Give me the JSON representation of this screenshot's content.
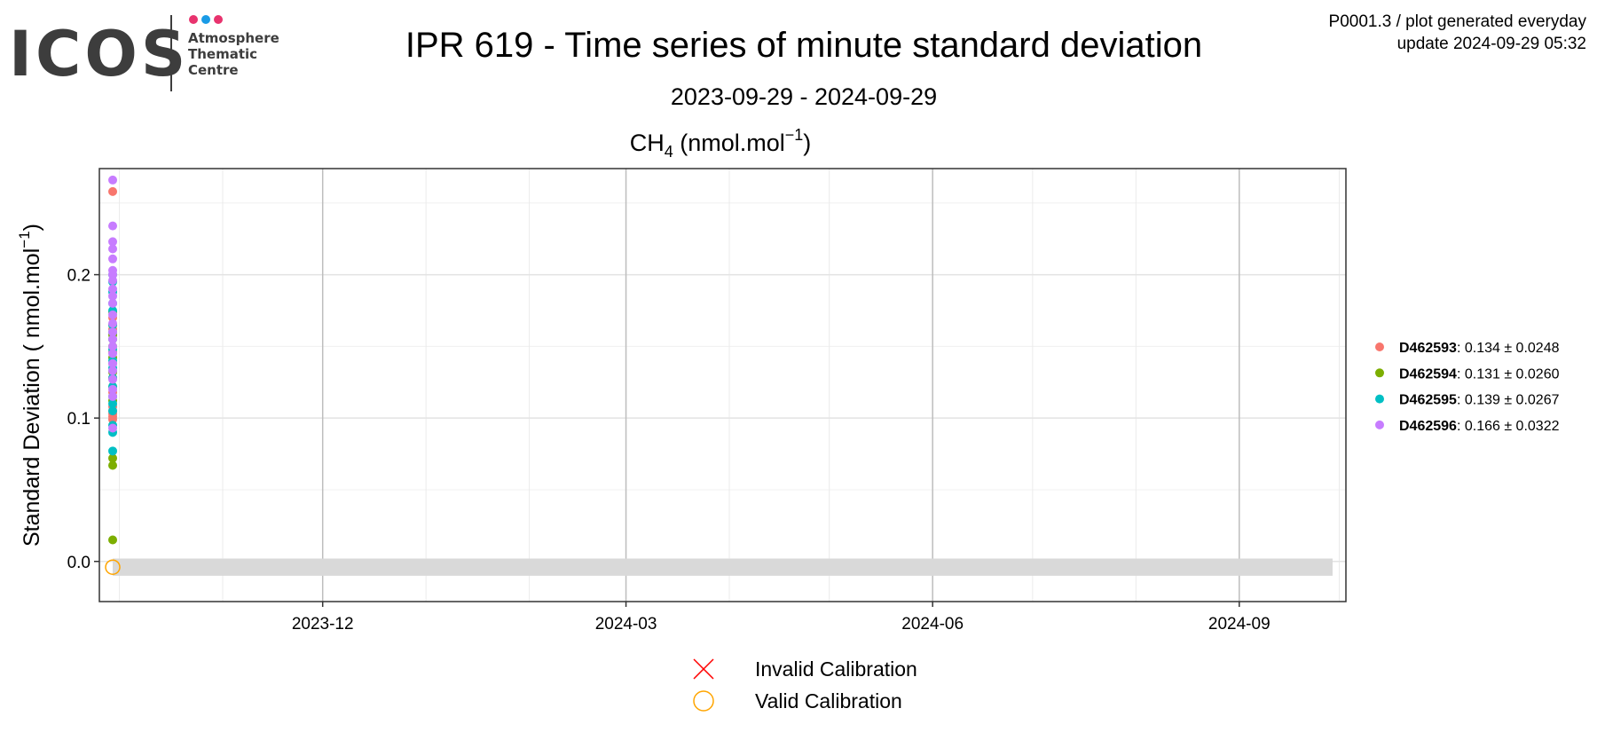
{
  "header": {
    "logo_text": "ICOS",
    "logo_sub": [
      "Atmosphere",
      "Thematic",
      "Centre"
    ],
    "logo_dot_colors": [
      "#e8336e",
      "#1a9be6",
      "#e8336e"
    ],
    "meta_line1": "P0001.3 / plot generated everyday",
    "meta_line2": "update  2024-09-29 05:32"
  },
  "chart_data": {
    "type": "scatter",
    "title": "IPR 619 - Time series of minute standard deviation",
    "subtitle": "2023-09-29 - 2024-09-29",
    "panel_title": "CH",
    "panel_title_sub": "4",
    "panel_title_unit": " (nmol.mol",
    "panel_title_sup": "−1",
    "panel_title_end": ")",
    "ylabel": "Standard Deviation ( nmol.mol",
    "ylabel_sup": "−1",
    "ylabel_end": ")",
    "xlim": [
      "2023-09-25",
      "2024-10-03"
    ],
    "ylim": [
      -0.028,
      0.274
    ],
    "x_ticks": [
      "2023-12-01",
      "2024-03-01",
      "2024-06-01",
      "2024-09-01"
    ],
    "x_tick_labels": [
      "2023-12",
      "2024-03",
      "2024-06",
      "2024-09"
    ],
    "y_ticks": [
      0.0,
      0.1,
      0.2
    ],
    "y_tick_labels": [
      "0.0",
      "0.1",
      "0.2"
    ],
    "grid": true,
    "legend_placement": "right",
    "band": {
      "x": [
        "2023-09-29",
        "2024-09-29"
      ],
      "y": [
        -0.01,
        0.002
      ],
      "color": "#d9d9d9"
    },
    "series": [
      {
        "name": "D462593",
        "stat": ": 0.134 ± 0.0248",
        "color": "#f8766d",
        "x": "2023-09-29",
        "values": [
          0.258,
          0.105,
          0.103,
          0.101,
          0.099,
          0.108,
          0.118,
          0.128,
          0.138,
          0.146,
          0.155,
          0.162,
          0.17
        ]
      },
      {
        "name": "D462594",
        "stat": ": 0.131 ± 0.0260",
        "color": "#7cae00",
        "x": "2023-09-29",
        "values": [
          0.174,
          0.015,
          0.067,
          0.072,
          0.112,
          0.122,
          0.132,
          0.142,
          0.15,
          0.158,
          0.165
        ]
      },
      {
        "name": "D462595",
        "stat": ": 0.139 ± 0.0267",
        "color": "#00bfc4",
        "x": "2023-09-29",
        "values": [
          0.077,
          0.09,
          0.095,
          0.105,
          0.11,
          0.115,
          0.122,
          0.128,
          0.135,
          0.14,
          0.148,
          0.155,
          0.16,
          0.165,
          0.175,
          0.18,
          0.188,
          0.195,
          0.2
        ]
      },
      {
        "name": "D462596",
        "stat": ": 0.166 ± 0.0322",
        "color": "#c77cff",
        "x": "2023-09-29",
        "values": [
          0.266,
          0.234,
          0.223,
          0.218,
          0.211,
          0.203,
          0.2,
          0.196,
          0.19,
          0.185,
          0.18,
          0.172,
          0.166,
          0.16,
          0.155,
          0.15,
          0.145,
          0.138,
          0.133,
          0.127,
          0.12,
          0.115,
          0.093
        ]
      }
    ],
    "calibration_points": [
      {
        "type": "valid",
        "x": "2023-09-29",
        "y": -0.004
      }
    ],
    "calibration_legend": [
      {
        "label": "Invalid Calibration",
        "symbol": "cross",
        "color": "#ff0000"
      },
      {
        "label": "Valid Calibration",
        "symbol": "circle",
        "color": "#ffa500"
      }
    ]
  }
}
